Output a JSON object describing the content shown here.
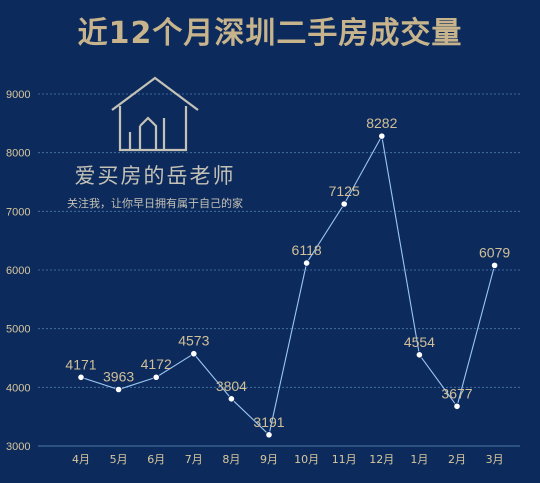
{
  "title": "近12个月深圳二手房成交量",
  "watermark": {
    "brand": "爱买房的岳老师",
    "slogan": "关注我，让你早日拥有属于自己的家"
  },
  "colors": {
    "background": "#0c2b5c",
    "title": "#c7b48c",
    "line": "#9bc6f2",
    "labels": "#d1bf98"
  },
  "chart_data": {
    "type": "line",
    "title": "近12个月深圳二手房成交量",
    "xlabel": "",
    "ylabel": "",
    "categories": [
      "4月",
      "5月",
      "6月",
      "7月",
      "8月",
      "9月",
      "10月",
      "11月",
      "12月",
      "1月",
      "2月",
      "3月"
    ],
    "values": [
      4171,
      3963,
      4172,
      4573,
      3804,
      3191,
      6118,
      7125,
      8282,
      4554,
      3677,
      6079
    ],
    "ylim": [
      3000,
      9000
    ],
    "yticks": [
      3000,
      4000,
      5000,
      6000,
      7000,
      8000,
      9000
    ],
    "grid": true,
    "data_labels": true
  }
}
